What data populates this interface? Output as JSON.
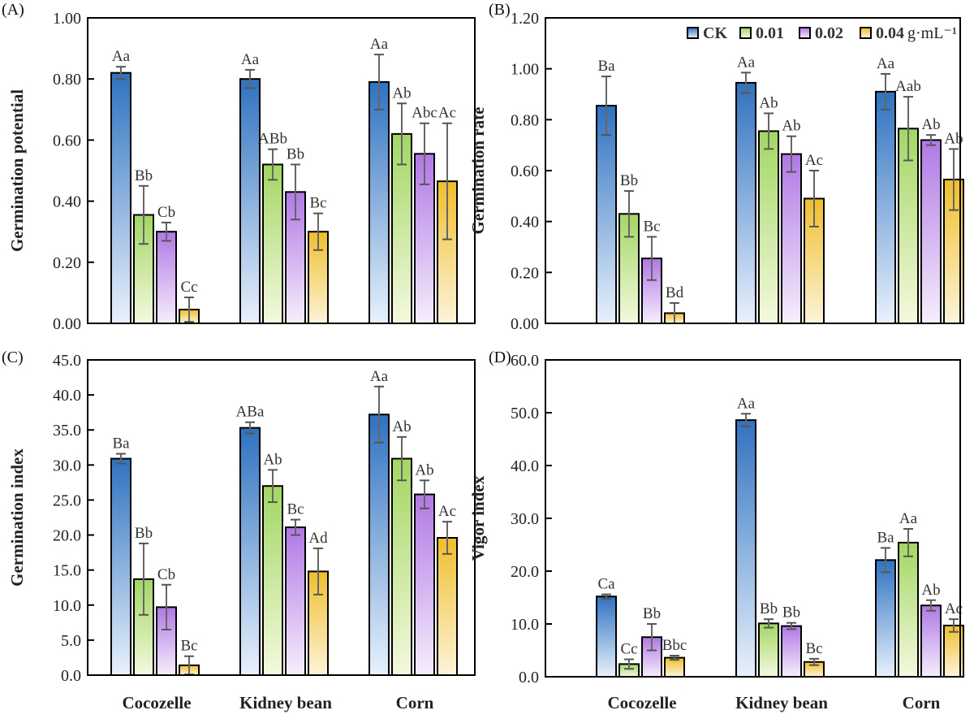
{
  "chart_data": [
    {
      "type": "bar",
      "panel_label": "(A)",
      "ylabel": "Germination potential",
      "categories": [
        "Cocozelle",
        "Kidney bean",
        "Corn"
      ],
      "show_categories": false,
      "ylim": [
        0,
        1.0
      ],
      "ystep": 0.2,
      "tick_decimals": 2,
      "grid": false,
      "series": [
        {
          "name": "CK",
          "values": [
            0.82,
            0.8,
            0.79
          ],
          "errors": [
            0.02,
            0.03,
            0.09
          ],
          "labels": [
            "Aa",
            "Aa",
            "Aa"
          ]
        },
        {
          "name": "0.01",
          "values": [
            0.355,
            0.52,
            0.62
          ],
          "errors": [
            0.095,
            0.05,
            0.1
          ],
          "labels": [
            "Bb",
            "ABb",
            "Ab"
          ]
        },
        {
          "name": "0.02",
          "values": [
            0.3,
            0.43,
            0.555
          ],
          "errors": [
            0.03,
            0.09,
            0.1
          ],
          "labels": [
            "Cb",
            "Bb",
            "Abc"
          ]
        },
        {
          "name": "0.04",
          "values": [
            0.045,
            0.3,
            0.465
          ],
          "errors": [
            0.04,
            0.06,
            0.19
          ],
          "labels": [
            "Cc",
            "Bc",
            "Ac"
          ]
        }
      ]
    },
    {
      "type": "bar",
      "panel_label": "(B)",
      "ylabel": "Germination rate",
      "categories": [
        "Cocozelle",
        "Kidney bean",
        "Corn"
      ],
      "show_categories": false,
      "ylim": [
        0,
        1.2
      ],
      "ystep": 0.2,
      "tick_decimals": 2,
      "grid": false,
      "legend": {
        "position": "top-right",
        "unit": "g·mL⁻¹"
      },
      "series": [
        {
          "name": "CK",
          "values": [
            0.855,
            0.945,
            0.91
          ],
          "errors": [
            0.115,
            0.04,
            0.07
          ],
          "labels": [
            "Ba",
            "Aa",
            "Aa"
          ]
        },
        {
          "name": "0.01",
          "values": [
            0.43,
            0.755,
            0.765
          ],
          "errors": [
            0.09,
            0.07,
            0.125
          ],
          "labels": [
            "Bb",
            "Ab",
            "Aab"
          ]
        },
        {
          "name": "0.02",
          "values": [
            0.255,
            0.665,
            0.72
          ],
          "errors": [
            0.085,
            0.07,
            0.02
          ],
          "labels": [
            "Bc",
            "Ab",
            "Ab"
          ]
        },
        {
          "name": "0.04",
          "values": [
            0.04,
            0.49,
            0.565
          ],
          "errors": [
            0.04,
            0.11,
            0.12
          ],
          "labels": [
            "Bd",
            "Ac",
            "Ab"
          ]
        }
      ]
    },
    {
      "type": "bar",
      "panel_label": "(C)",
      "ylabel": "Germination index",
      "categories": [
        "Cocozelle",
        "Kidney bean",
        "Corn"
      ],
      "show_categories": true,
      "ylim": [
        0,
        45
      ],
      "ystep": 5,
      "tick_decimals": 1,
      "grid": false,
      "series": [
        {
          "name": "CK",
          "values": [
            30.9,
            35.3,
            37.2
          ],
          "errors": [
            0.7,
            0.8,
            4.0
          ],
          "labels": [
            "Ba",
            "ABa",
            "Aa"
          ]
        },
        {
          "name": "0.01",
          "values": [
            13.7,
            27.0,
            30.9
          ],
          "errors": [
            5.1,
            2.3,
            3.1
          ],
          "labels": [
            "Bb",
            "Ab",
            "Ab"
          ]
        },
        {
          "name": "0.02",
          "values": [
            9.7,
            21.1,
            25.8
          ],
          "errors": [
            3.2,
            1.1,
            2.0
          ],
          "labels": [
            "Cb",
            "Bc",
            "Ab"
          ]
        },
        {
          "name": "0.04",
          "values": [
            1.4,
            14.8,
            19.6
          ],
          "errors": [
            1.3,
            3.3,
            2.3
          ],
          "labels": [
            "Bc",
            "Ad",
            "Ac"
          ]
        }
      ]
    },
    {
      "type": "bar",
      "panel_label": "(D)",
      "ylabel": "Vigor index",
      "categories": [
        "Cocozelle",
        "Kidney bean",
        "Corn"
      ],
      "show_categories": true,
      "ylim": [
        0,
        60
      ],
      "ystep": 10,
      "tick_decimals": 1,
      "grid": false,
      "series": [
        {
          "name": "CK",
          "values": [
            15.2,
            48.6,
            22.1
          ],
          "errors": [
            0.4,
            1.2,
            2.3
          ],
          "labels": [
            "Ca",
            "Aa",
            "Ba"
          ]
        },
        {
          "name": "0.01",
          "values": [
            2.4,
            10.1,
            25.4
          ],
          "errors": [
            0.9,
            0.8,
            2.6
          ],
          "labels": [
            "Cc",
            "Bb",
            "Aa"
          ]
        },
        {
          "name": "0.02",
          "values": [
            7.5,
            9.6,
            13.5
          ],
          "errors": [
            2.5,
            0.6,
            1.0
          ],
          "labels": [
            "Bb",
            "Bb",
            "Ab"
          ]
        },
        {
          "name": "0.04",
          "values": [
            3.6,
            2.8,
            9.7
          ],
          "errors": [
            0.4,
            0.6,
            1.2
          ],
          "labels": [
            "Bbc",
            "Bc",
            "Ac"
          ]
        }
      ]
    }
  ],
  "colors": {
    "CK": "#3a7fc9",
    "0.01": "#a6d867",
    "0.02": "#b57de6",
    "0.04": "#f1c232",
    "error_bar": "#666666",
    "axis": "#000000"
  }
}
